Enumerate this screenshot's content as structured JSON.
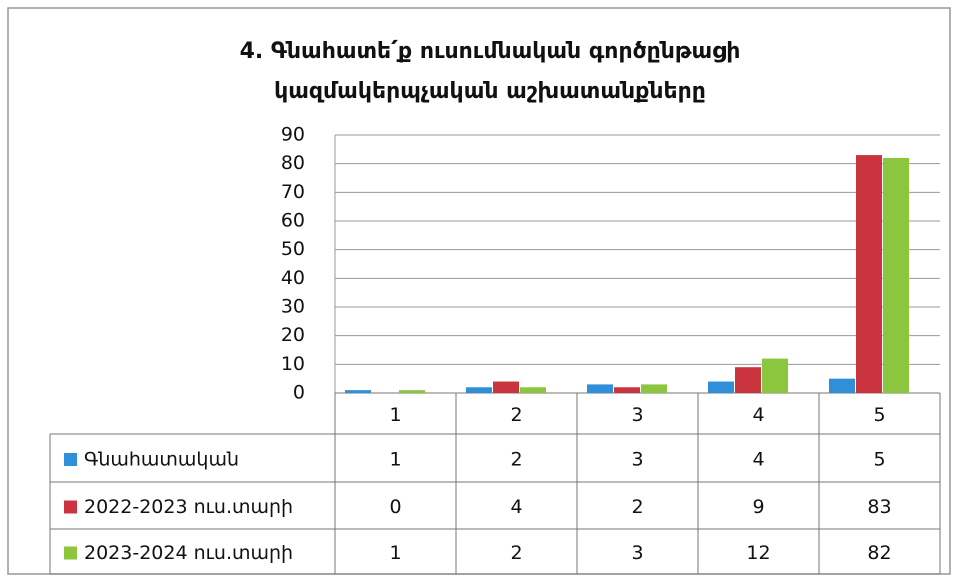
{
  "chart_data": {
    "type": "bar",
    "title": [
      "4. Գնահատե՛ք ուսումնական գործընթացի",
      "կազմակերպչական աշխատանքները"
    ],
    "categories": [
      "1",
      "2",
      "3",
      "4",
      "5"
    ],
    "series": [
      {
        "name": "Գնահատական",
        "color": "#2f8fd8",
        "values": [
          1,
          2,
          3,
          4,
          5
        ]
      },
      {
        "name": "2022-2023 ուս.տարի",
        "color": "#c9343f",
        "values": [
          0,
          4,
          2,
          9,
          83
        ]
      },
      {
        "name": "2023-2024 ուս.տարի",
        "color": "#8cc63e",
        "values": [
          1,
          2,
          3,
          12,
          82
        ]
      }
    ],
    "ylim": [
      0,
      90
    ],
    "yticks": [
      0,
      10,
      20,
      30,
      40,
      50,
      60,
      70,
      80,
      90
    ],
    "grid": true
  }
}
